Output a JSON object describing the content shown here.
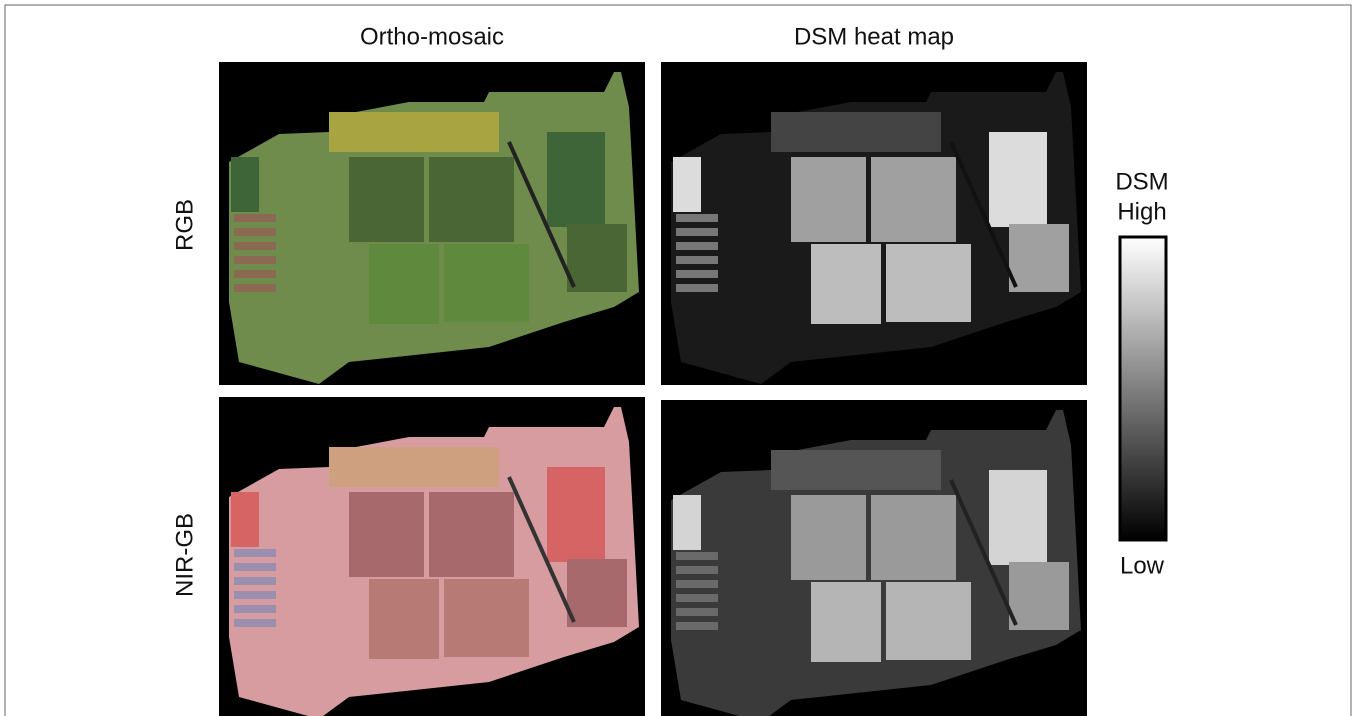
{
  "columns": [
    "Ortho-mosaic",
    "DSM heat map"
  ],
  "rows": [
    "RGB",
    "NIR-GB"
  ],
  "colorbar": {
    "high": [
      "DSM",
      "High"
    ],
    "low": "Low"
  }
}
